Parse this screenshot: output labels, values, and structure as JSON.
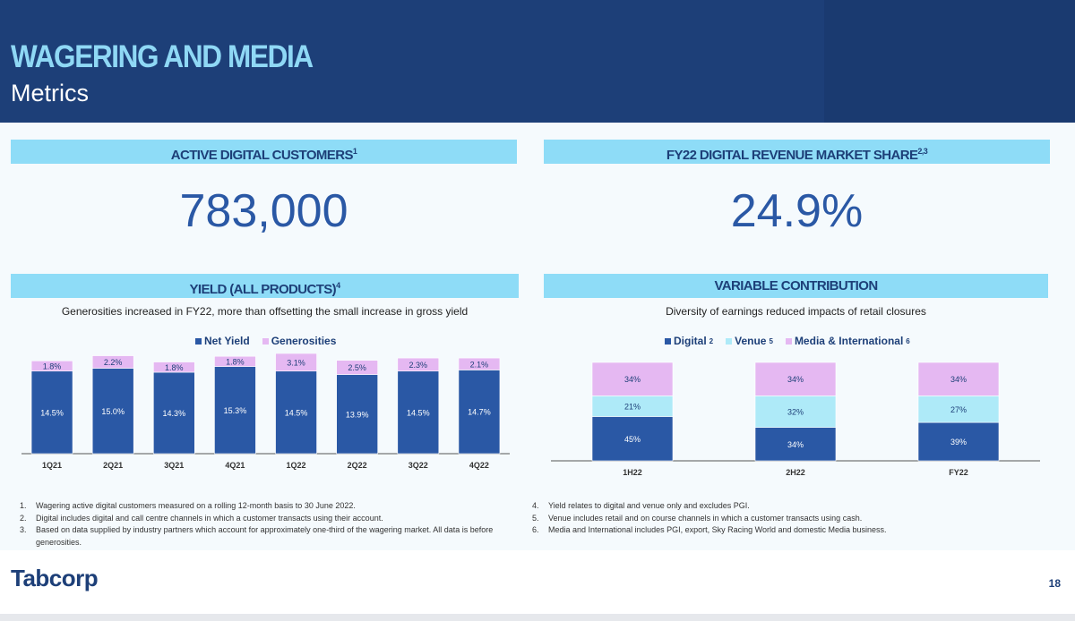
{
  "header": {
    "title": "WAGERING AND MEDIA",
    "subtitle": "Metrics"
  },
  "active_customers": {
    "label": "ACTIVE DIGITAL CUSTOMERS",
    "sup": "1",
    "value": "783,000"
  },
  "market_share": {
    "label": "FY22 DIGITAL REVENUE MARKET SHARE",
    "sup": "2,3",
    "value": "24.9%"
  },
  "yield": {
    "label": "YIELD (ALL PRODUCTS)",
    "sup": "4",
    "caption": "Generosities increased in FY22, more than offsetting the small increase in gross yield",
    "legend": [
      "Net Yield",
      "Generosities"
    ]
  },
  "variable": {
    "label": "VARIABLE CONTRIBUTION",
    "caption": "Diversity of earnings reduced impacts of retail closures",
    "legend": [
      {
        "name": "Digital",
        "sup": "2"
      },
      {
        "name": "Venue",
        "sup": "5"
      },
      {
        "name": "Media & International",
        "sup": "6"
      }
    ]
  },
  "chart_data": [
    {
      "type": "bar",
      "stacked": true,
      "categories": [
        "1Q21",
        "2Q21",
        "3Q21",
        "4Q21",
        "1Q22",
        "2Q22",
        "3Q22",
        "4Q22"
      ],
      "series": [
        {
          "name": "Net Yield",
          "values": [
            14.5,
            15.0,
            14.3,
            15.3,
            14.5,
            13.9,
            14.5,
            14.7
          ],
          "labels": [
            "14.5%",
            "15.0%",
            "14.3%",
            "15.3%",
            "14.5%",
            "13.9%",
            "14.5%",
            "14.7%"
          ],
          "color": "#2a58a5"
        },
        {
          "name": "Generosities",
          "values": [
            1.8,
            2.2,
            1.8,
            1.8,
            3.1,
            2.5,
            2.3,
            2.1
          ],
          "labels": [
            "1.8%",
            "2.2%",
            "1.8%",
            "1.8%",
            "3.1%",
            "2.5%",
            "2.3%",
            "2.1%"
          ],
          "color": "#e5b8f2"
        }
      ],
      "ylim": [
        0,
        17.6
      ],
      "legend": "top"
    },
    {
      "type": "bar",
      "stacked": true,
      "categories": [
        "1H22",
        "2H22",
        "FY22"
      ],
      "series": [
        {
          "name": "Digital",
          "values": [
            45,
            34,
            39
          ],
          "labels": [
            "45%",
            "34%",
            "39%"
          ],
          "color": "#2a58a5"
        },
        {
          "name": "Venue",
          "values": [
            21,
            32,
            27
          ],
          "labels": [
            "21%",
            "32%",
            "27%"
          ],
          "color": "#aeeaf8"
        },
        {
          "name": "Media & International",
          "values": [
            34,
            34,
            34
          ],
          "labels": [
            "34%",
            "34%",
            "34%"
          ],
          "color": "#e5b8f2"
        }
      ],
      "ylim": [
        0,
        100
      ],
      "legend": "top"
    }
  ],
  "footnotes_left": [
    {
      "num": "1.",
      "text": "Wagering active digital customers measured on a rolling 12-month basis to 30 June 2022."
    },
    {
      "num": "2.",
      "text": "Digital includes digital and call centre channels in which a customer transacts using their account."
    },
    {
      "num": "3.",
      "text": "Based on data supplied by industry partners which account for approximately one-third of the wagering market. All data is before generosities."
    }
  ],
  "footnotes_right": [
    {
      "num": "4.",
      "text": "Yield relates to digital and venue only and excludes PGI."
    },
    {
      "num": "5.",
      "text": "Venue includes retail and on course channels in which a customer transacts using cash."
    },
    {
      "num": "6.",
      "text": "Media and International includes PGI, export, Sky Racing World and domestic Media business."
    }
  ],
  "footer": {
    "logo": "Tabcorp",
    "page": "18"
  },
  "colors": {
    "navy": "#1d3f78",
    "banner": "#8edcf7",
    "blue": "#2a58a5",
    "lavender": "#e5b8f2",
    "cyan": "#aeeaf8"
  }
}
